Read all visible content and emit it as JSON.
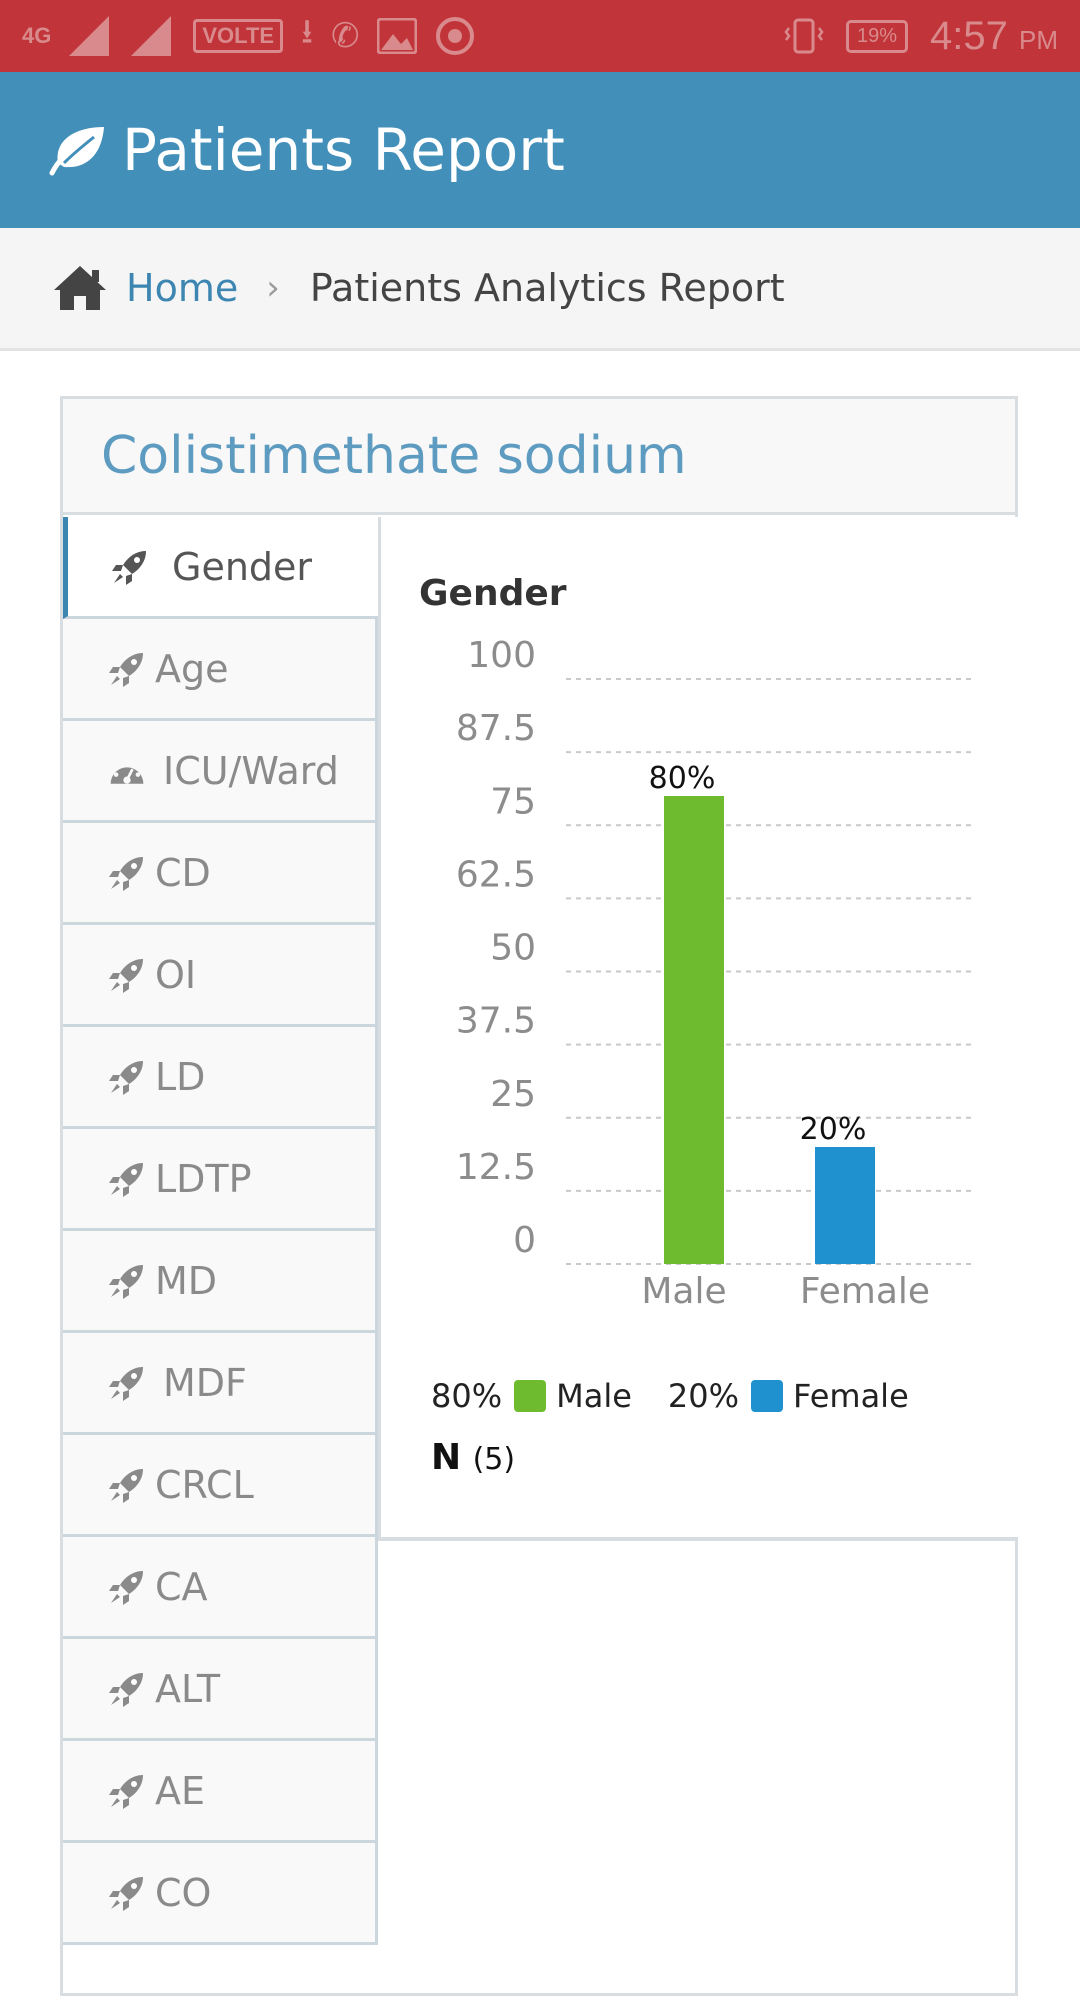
{
  "status_bar": {
    "network": "4G",
    "volte": "VOLTE",
    "battery": "19%",
    "time": "4:57",
    "ampm": "PM",
    "sim1": "1",
    "sim2": "2"
  },
  "app_bar": {
    "title": "Patients Report",
    "color": "#428fba"
  },
  "breadcrumb": {
    "home": "Home",
    "separator": "›",
    "current": "Patients Analytics Report"
  },
  "panel": {
    "title": "Colistimethate sodium"
  },
  "tabs": [
    {
      "label": "Gender",
      "icon": "rocket-icon",
      "active": true
    },
    {
      "label": "Age",
      "icon": "rocket-icon"
    },
    {
      "label": "ICU/Ward",
      "icon": "gauge-icon"
    },
    {
      "label": "CD",
      "icon": "rocket-icon"
    },
    {
      "label": "OI",
      "icon": "rocket-icon"
    },
    {
      "label": "LD",
      "icon": "rocket-icon"
    },
    {
      "label": "LDTP",
      "icon": "rocket-icon"
    },
    {
      "label": "MD",
      "icon": "rocket-icon"
    },
    {
      "label": "MDF",
      "icon": "rocket-icon"
    },
    {
      "label": "CRCL",
      "icon": "rocket-icon"
    },
    {
      "label": "CA",
      "icon": "rocket-icon"
    },
    {
      "label": "ALT",
      "icon": "rocket-icon"
    },
    {
      "label": "AE",
      "icon": "rocket-icon"
    },
    {
      "label": "CO",
      "icon": "rocket-icon"
    }
  ],
  "chart_data": {
    "type": "bar",
    "title": "Gender",
    "categories": [
      "Male",
      "Female"
    ],
    "values": [
      80,
      20
    ],
    "data_labels": [
      "80%",
      "20%"
    ],
    "colors": [
      "#6fbb2f",
      "#1f91cf"
    ],
    "ylim": [
      0,
      100
    ],
    "yticks": [
      "0",
      "12.5",
      "25",
      "37.5",
      "50",
      "62.5",
      "75",
      "87.5",
      "100"
    ],
    "grid": true,
    "legend": [
      {
        "percent": "80%",
        "name": "Male",
        "color": "#6fbb2f"
      },
      {
        "percent": "20%",
        "name": "Female",
        "color": "#1f91cf"
      }
    ],
    "legend_position": "bottom",
    "n_label": "N",
    "n_value": "(5)"
  }
}
